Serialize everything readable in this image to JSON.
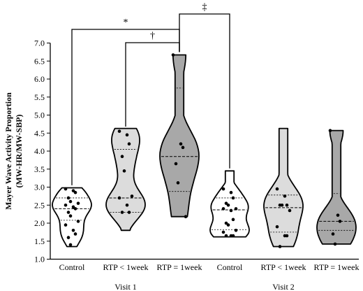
{
  "chart_data": {
    "type": "violin",
    "ylabel_line1": "Mayer Wave Activity Proportion",
    "ylabel_line2": "(MW-HR/MW-SBP)",
    "ylim": [
      1.0,
      7.0
    ],
    "yticks": [
      "1.0",
      "1.5",
      "2.0",
      "2.5",
      "3.0",
      "3.5",
      "4.0",
      "4.5",
      "5.0",
      "5.5",
      "6.0",
      "6.5",
      "7.0"
    ],
    "groups": [
      {
        "label": "Visit 1",
        "categories": [
          "Control",
          "RTP < 1week",
          "RTP = 1week"
        ]
      },
      {
        "label": "Visit 2",
        "categories": [
          "Control",
          "RTP < 1week",
          "RTP = 1week"
        ]
      }
    ],
    "violins": [
      {
        "category": "Control",
        "group": "Visit 1",
        "fill": "#ffffff",
        "min": 1.35,
        "max": 2.98,
        "q1": 2.08,
        "median": 2.4,
        "q3": 2.7,
        "points": [
          2.95,
          2.9,
          2.85,
          2.7,
          2.6,
          2.55,
          2.5,
          2.45,
          2.4,
          2.3,
          2.2,
          2.05,
          1.95,
          1.8,
          1.7,
          1.6,
          1.4
        ]
      },
      {
        "category": "RTP < 1week",
        "group": "Visit 1",
        "fill": "#dcdcdc",
        "min": 1.8,
        "max": 4.63,
        "q1": 2.3,
        "median": 2.7,
        "q3": 4.05,
        "points": [
          4.55,
          4.45,
          4.2,
          3.85,
          3.45,
          2.75,
          2.7,
          2.5,
          2.3,
          2.3
        ]
      },
      {
        "category": "RTP = 1week",
        "group": "Visit 1",
        "fill": "#a8a8a8",
        "min": 2.18,
        "max": 6.67,
        "q1": 2.88,
        "median": 3.85,
        "q3": 5.75,
        "points": [
          6.67,
          4.2,
          4.1,
          3.65,
          3.12,
          2.18
        ]
      },
      {
        "category": "Control",
        "group": "Visit 2",
        "fill": "#ffffff",
        "min": 1.62,
        "max": 3.45,
        "q1": 1.82,
        "median": 2.37,
        "q3": 2.7,
        "points": [
          2.95,
          2.85,
          2.7,
          2.55,
          2.5,
          2.4,
          2.4,
          2.35,
          2.1,
          2.0,
          1.95,
          1.8,
          1.75,
          1.65,
          1.65,
          1.65
        ]
      },
      {
        "category": "RTP < 1week",
        "group": "Visit 2",
        "fill": "#dcdcdc",
        "min": 1.35,
        "max": 4.63,
        "q1": 1.75,
        "median": 2.43,
        "q3": 2.78,
        "points": [
          2.95,
          2.75,
          2.5,
          2.5,
          2.5,
          2.35,
          1.9,
          1.65,
          1.65,
          1.35
        ]
      },
      {
        "category": "RTP = 1week",
        "group": "Visit 2",
        "fill": "#a8a8a8",
        "min": 1.42,
        "max": 4.57,
        "q1": 1.8,
        "median": 2.05,
        "q3": 2.82,
        "points": [
          4.57,
          2.22,
          2.05,
          1.7,
          1.42
        ]
      }
    ],
    "significance": [
      {
        "symbol": "*",
        "from": "Visit 1 Control",
        "to": "Visit 1 RTP = 1week"
      },
      {
        "symbol": "†",
        "from": "Visit 1 RTP < 1week",
        "to": "Visit 1 RTP = 1week"
      },
      {
        "symbol": "‡",
        "from": "Visit 1 RTP = 1week",
        "to": "Visit 2 Control"
      }
    ],
    "grid": false,
    "legend": "none"
  }
}
